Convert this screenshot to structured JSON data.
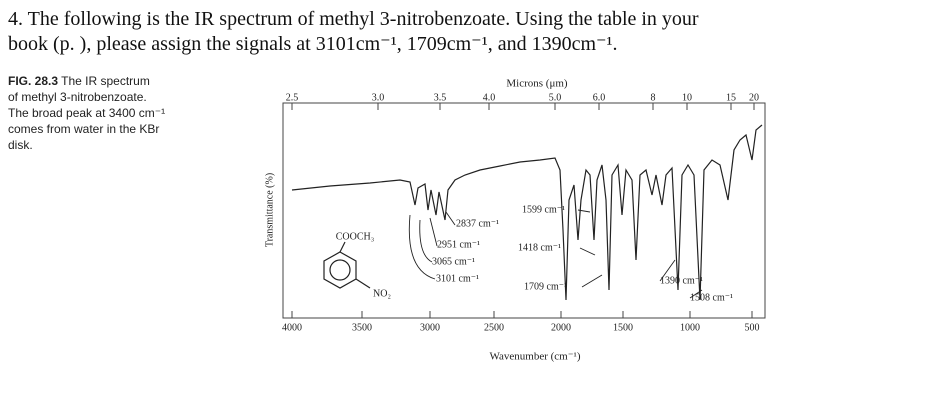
{
  "question": {
    "line1": "4. The following is the IR spectrum of methyl 3-nitrobenzoate.  Using the table in your",
    "line2": "book (p.   ), please assign the signals at 3101cm⁻¹, 1709cm⁻¹, and 1390cm⁻¹."
  },
  "figure": {
    "label": "FIG. 28.3",
    "caption": [
      "The IR spectrum",
      "of methyl 3-nitrobenzoate.",
      "The broad peak at 3400 cm⁻¹",
      "comes from water in the KBr",
      "disk.",
      ""
    ],
    "top_axis_title": "Microns (μm)",
    "bottom_axis_title": "Wavenumber (cm⁻¹)",
    "y_axis_title": "Transmittance (%)",
    "top_ticks": [
      "2.5",
      "3.0",
      "3.5",
      "4.0",
      "5.0",
      "6.0",
      "8",
      "10",
      "15",
      "20"
    ],
    "bottom_ticks": [
      "4000",
      "3500",
      "3000",
      "2500",
      "2000",
      "1500",
      "1000",
      "500"
    ],
    "annotations": [
      "COOCH₃",
      "NO₂",
      "2837 cm⁻¹",
      "2951 cm⁻¹",
      "3065 cm⁻¹",
      "3101 cm⁻¹",
      "1599 cm⁻¹",
      "1418 cm⁻¹",
      "1709 cm⁻¹",
      "1390 cm⁻¹",
      "1508 cm⁻¹"
    ]
  }
}
